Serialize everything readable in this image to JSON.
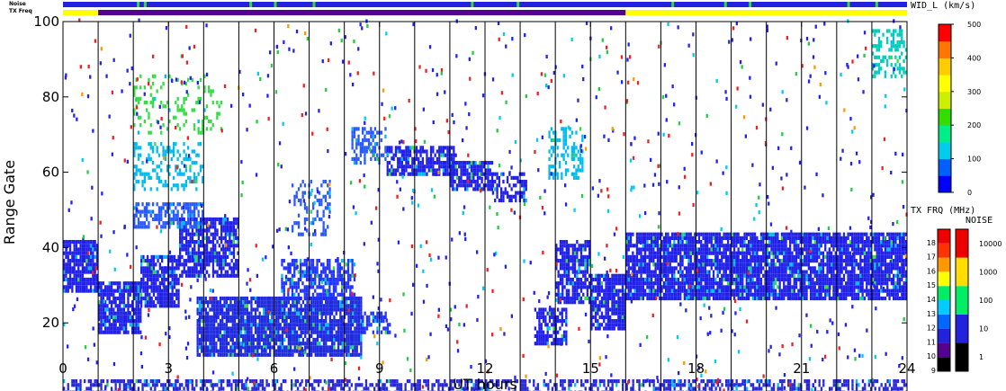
{
  "chart_data": {
    "type": "heatmap",
    "xlabel": "UT hours",
    "ylabel": "Range Gate",
    "xlim": [
      0,
      24
    ],
    "ylim": [
      0,
      100
    ],
    "x_ticks": [
      0,
      3,
      6,
      9,
      12,
      15,
      18,
      21,
      24
    ],
    "y_ticks": [
      0,
      20,
      40,
      60,
      80,
      100
    ],
    "hour_divider_lines": [
      1,
      2,
      3,
      4,
      5,
      6,
      7,
      8,
      9,
      10,
      11,
      12,
      13,
      14,
      15,
      16,
      17,
      18,
      19,
      20,
      21,
      22,
      23
    ],
    "top_strips": {
      "noise_label": "Noise",
      "txfreq_label": "TX Freq",
      "noise_strip": [
        {
          "x0": 0,
          "x1": 24,
          "color": "#2323dd"
        }
      ],
      "noise_marks_hours": [
        2.1,
        2.3,
        5.3,
        6.0,
        7.1,
        11.6,
        12.9,
        17.3,
        18.8,
        19.5,
        22.3,
        23.1
      ],
      "txfreq_strip": [
        {
          "x0": 0,
          "x1": 1.0,
          "color": "#ffff00"
        },
        {
          "x0": 1.0,
          "x1": 16.0,
          "color": "#55008f"
        },
        {
          "x0": 16.0,
          "x1": 24,
          "color": "#ffff00"
        }
      ]
    },
    "colorbar_width": {
      "title": "WID_L (km/s)",
      "range": [
        0,
        500
      ],
      "ticks": [
        0,
        100,
        200,
        300,
        400,
        500
      ],
      "stops": [
        "#0000ff",
        "#0060ff",
        "#00ccee",
        "#00ee88",
        "#33dd00",
        "#ccee00",
        "#ffff00",
        "#ffcc00",
        "#ff7700",
        "#ff0000"
      ]
    },
    "colorbar_txfreq": {
      "title": "TX FRQ (MHz)",
      "ticks": [
        9,
        10,
        11,
        12,
        13,
        14,
        15,
        16,
        17,
        18
      ],
      "colors": [
        "#000000",
        "#55008f",
        "#2323dd",
        "#0068ff",
        "#00ccff",
        "#00ee66",
        "#ffff00",
        "#ff9900",
        "#ff3300",
        "#ee0000"
      ]
    },
    "colorbar_noise": {
      "title": "NOISE",
      "ticks": [
        "1",
        "10",
        "100",
        "1000",
        "10000"
      ],
      "colors": [
        "#000000",
        "#2323dd",
        "#00ee66",
        "#ffdd00",
        "#ee0000"
      ]
    },
    "echo_regions": [
      {
        "t0": 0.0,
        "t1": 1.0,
        "g0": 28,
        "g1": 42,
        "density": 0.85,
        "color": "#2020e8"
      },
      {
        "t0": 1.0,
        "t1": 2.2,
        "g0": 17,
        "g1": 31,
        "density": 0.85,
        "color": "#2020e8"
      },
      {
        "t0": 2.2,
        "t1": 3.3,
        "g0": 24,
        "g1": 38,
        "density": 0.8,
        "color": "#2020e8"
      },
      {
        "t0": 3.3,
        "t1": 5.0,
        "g0": 32,
        "g1": 48,
        "density": 0.75,
        "color": "#2020e8"
      },
      {
        "t0": 2.0,
        "t1": 4.0,
        "g0": 45,
        "g1": 52,
        "density": 0.55,
        "color": "#2a58ff"
      },
      {
        "t0": 2.0,
        "t1": 4.0,
        "g0": 55,
        "g1": 68,
        "density": 0.3,
        "color": "#00bbee"
      },
      {
        "t0": 2.0,
        "t1": 4.5,
        "g0": 70,
        "g1": 86,
        "density": 0.2,
        "color": "#33dd44"
      },
      {
        "t0": 3.8,
        "t1": 8.5,
        "g0": 11,
        "g1": 27,
        "density": 0.88,
        "color": "#1f2adf"
      },
      {
        "t0": 6.2,
        "t1": 8.3,
        "g0": 26,
        "g1": 37,
        "density": 0.65,
        "color": "#2233ff"
      },
      {
        "t0": 8.5,
        "t1": 9.3,
        "g0": 17,
        "g1": 23,
        "density": 0.55,
        "color": "#2233ff"
      },
      {
        "t0": 6.5,
        "t1": 7.6,
        "g0": 43,
        "g1": 58,
        "density": 0.3,
        "color": "#2a58ff"
      },
      {
        "t0": 8.2,
        "t1": 9.2,
        "g0": 62,
        "g1": 72,
        "density": 0.5,
        "color": "#2a58ff"
      },
      {
        "t0": 9.2,
        "t1": 11.2,
        "g0": 59,
        "g1": 67,
        "density": 0.75,
        "color": "#2020e8"
      },
      {
        "t0": 11.0,
        "t1": 12.2,
        "g0": 55,
        "g1": 63,
        "density": 0.7,
        "color": "#2020e8"
      },
      {
        "t0": 12.2,
        "t1": 13.2,
        "g0": 52,
        "g1": 60,
        "density": 0.6,
        "color": "#2020e8"
      },
      {
        "t0": 13.4,
        "t1": 14.3,
        "g0": 14,
        "g1": 24,
        "density": 0.7,
        "color": "#2020e8"
      },
      {
        "t0": 13.8,
        "t1": 14.8,
        "g0": 58,
        "g1": 72,
        "density": 0.4,
        "color": "#00bbee"
      },
      {
        "t0": 14.0,
        "t1": 15.0,
        "g0": 25,
        "g1": 42,
        "density": 0.75,
        "color": "#2020e8"
      },
      {
        "t0": 15.0,
        "t1": 16.0,
        "g0": 18,
        "g1": 33,
        "density": 0.85,
        "color": "#2020e8"
      },
      {
        "t0": 16.0,
        "t1": 24.0,
        "g0": 26,
        "g1": 44,
        "density": 0.88,
        "color": "#2020e8"
      },
      {
        "t0": 23.0,
        "t1": 24.0,
        "g0": 85,
        "g1": 98,
        "density": 0.4,
        "color": "#00ccbb"
      },
      {
        "t0": 0.0,
        "t1": 24.0,
        "g0": 0,
        "g1": 5,
        "density": 0.55,
        "color": "#2828d8"
      }
    ]
  }
}
